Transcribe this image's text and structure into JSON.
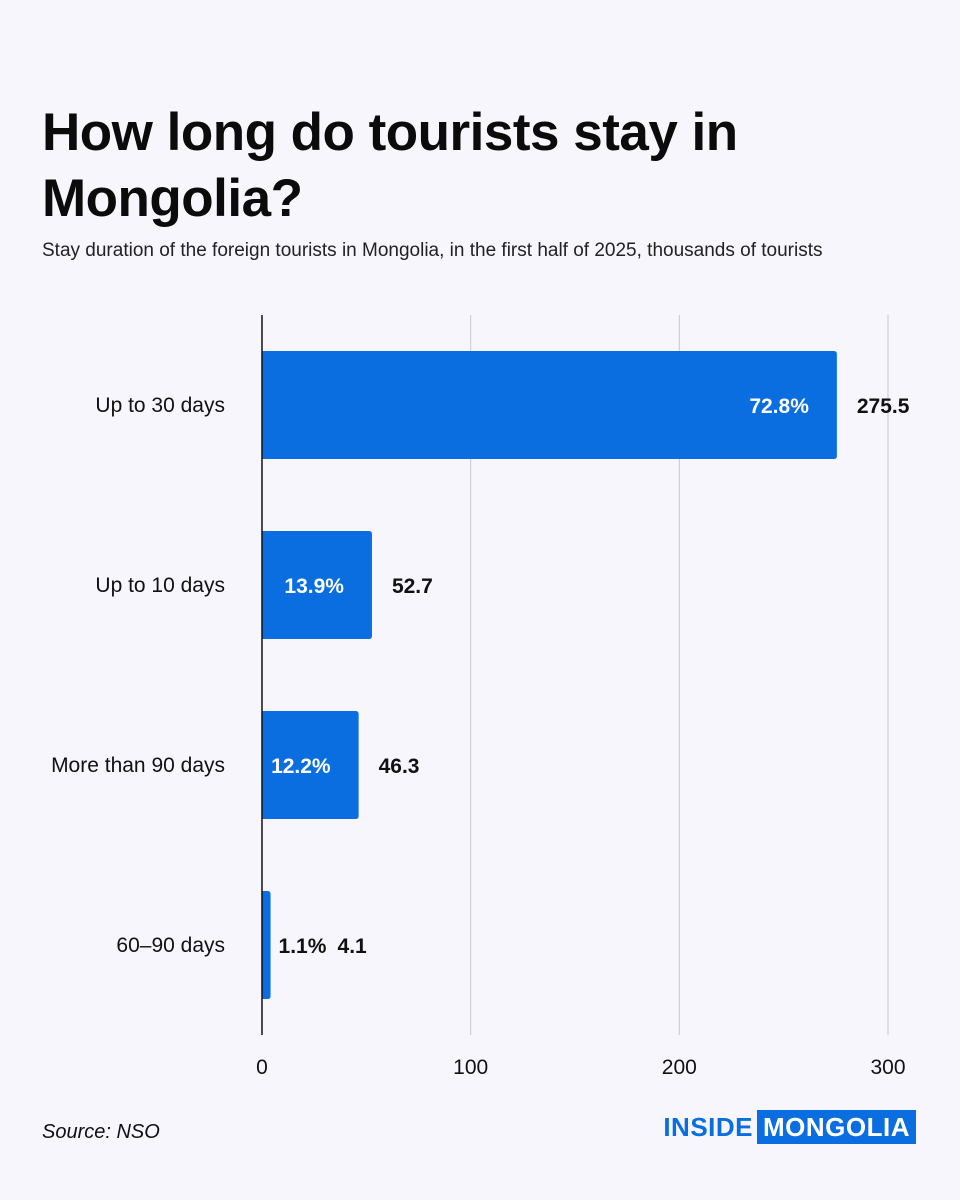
{
  "header": {
    "title": "How long do tourists stay in Mongolia?",
    "subtitle": "Stay duration of the foreign tourists in Mongolia, in the first half of 2025, thousands of tourists"
  },
  "footer": {
    "source": "Source: NSO",
    "brand_part1": "INSIDE",
    "brand_part2": "MONGOLIA"
  },
  "colors": {
    "bar": "#0a6ee0",
    "grid": "#c8c8c8",
    "axis": "#111111",
    "background": "#f6f6fc"
  },
  "chart_data": {
    "type": "bar",
    "orientation": "horizontal",
    "title": "How long do tourists stay in Mongolia?",
    "subtitle": "Stay duration of the foreign tourists in Mongolia, in the first half of 2025, thousands of tourists",
    "categories": [
      "Up to 30 days",
      "Up to 10 days",
      "More than 90 days",
      "60–90 days"
    ],
    "values": [
      275.5,
      52.7,
      46.3,
      4.1
    ],
    "value_labels": [
      "275.5",
      "52.7",
      "46.3",
      "4.1"
    ],
    "share_labels": [
      "72.8%",
      "13.9%",
      "12.2%",
      "1.1%"
    ],
    "xlim": [
      0,
      300
    ],
    "xticks": [
      0,
      100,
      200,
      300
    ],
    "grid": true,
    "legend": "none"
  }
}
